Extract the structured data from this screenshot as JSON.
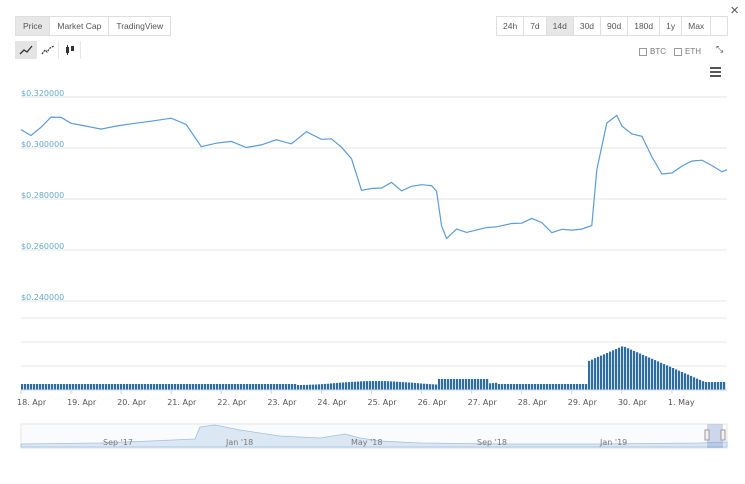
{
  "window": {
    "close_label": "×"
  },
  "tabs": [
    {
      "label": "Price",
      "active": true
    },
    {
      "label": "Market Cap",
      "active": false
    },
    {
      "label": "TradingView",
      "active": false
    }
  ],
  "periods": [
    {
      "label": "24h",
      "active": false
    },
    {
      "label": "7d",
      "active": false
    },
    {
      "label": "14d",
      "active": true
    },
    {
      "label": "30d",
      "active": false
    },
    {
      "label": "90d",
      "active": false
    },
    {
      "label": "180d",
      "active": false
    },
    {
      "label": "1y",
      "active": false
    },
    {
      "label": "Max",
      "active": false
    }
  ],
  "chart_types": [
    {
      "name": "line-chart-icon",
      "active": true
    },
    {
      "name": "ohlc-line-icon",
      "active": false
    },
    {
      "name": "candlestick-icon",
      "active": false
    }
  ],
  "toggles": [
    {
      "label": "BTC",
      "checked": false
    },
    {
      "label": "ETH",
      "checked": false
    }
  ],
  "chart_data": {
    "type": "line",
    "title": "",
    "yticks": [
      "$0.320000",
      "$0.300000",
      "$0.280000",
      "$0.260000",
      "$0.240000"
    ],
    "ylim": [
      0.24,
      0.32
    ],
    "x_labels": [
      "18. Apr",
      "19. Apr",
      "20. Apr",
      "21. Apr",
      "22. Apr",
      "23. Apr",
      "24. Apr",
      "25. Apr",
      "26. Apr",
      "27. Apr",
      "28. Apr",
      "29. Apr",
      "30. Apr",
      "1. May"
    ],
    "price_series": {
      "name": "Price",
      "color": "#5b9bd5",
      "points": [
        [
          0,
          0.3072
        ],
        [
          0.2,
          0.3049
        ],
        [
          0.4,
          0.3081
        ],
        [
          0.6,
          0.3121
        ],
        [
          0.8,
          0.312
        ],
        [
          1.0,
          0.3097
        ],
        [
          1.3,
          0.3086
        ],
        [
          1.6,
          0.3074
        ],
        [
          1.9,
          0.3086
        ],
        [
          2.2,
          0.3095
        ],
        [
          2.6,
          0.3105
        ],
        [
          3.0,
          0.3117
        ],
        [
          3.3,
          0.3092
        ],
        [
          3.6,
          0.3005
        ],
        [
          3.9,
          0.3019
        ],
        [
          4.2,
          0.3026
        ],
        [
          4.5,
          0.3002
        ],
        [
          4.8,
          0.3012
        ],
        [
          5.1,
          0.3032
        ],
        [
          5.4,
          0.3016
        ],
        [
          5.7,
          0.3064
        ],
        [
          6.0,
          0.3034
        ],
        [
          6.2,
          0.3036
        ],
        [
          6.4,
          0.3003
        ],
        [
          6.6,
          0.2958
        ],
        [
          6.8,
          0.2834
        ],
        [
          7.0,
          0.2841
        ],
        [
          7.2,
          0.2843
        ],
        [
          7.4,
          0.2865
        ],
        [
          7.6,
          0.2832
        ],
        [
          7.8,
          0.285
        ],
        [
          8.0,
          0.2856
        ],
        [
          8.2,
          0.2852
        ],
        [
          8.3,
          0.283
        ],
        [
          8.4,
          0.2694
        ],
        [
          8.5,
          0.2645
        ],
        [
          8.7,
          0.2682
        ],
        [
          8.9,
          0.2669
        ],
        [
          9.1,
          0.2679
        ],
        [
          9.3,
          0.2688
        ],
        [
          9.5,
          0.2691
        ],
        [
          9.8,
          0.2704
        ],
        [
          10.0,
          0.2705
        ],
        [
          10.2,
          0.2724
        ],
        [
          10.4,
          0.2708
        ],
        [
          10.6,
          0.2668
        ],
        [
          10.8,
          0.2681
        ],
        [
          11.0,
          0.2678
        ],
        [
          11.2,
          0.2682
        ],
        [
          11.4,
          0.2696
        ],
        [
          11.5,
          0.2914
        ],
        [
          11.7,
          0.3098
        ],
        [
          11.9,
          0.3128
        ],
        [
          12.0,
          0.3086
        ],
        [
          12.2,
          0.3055
        ],
        [
          12.4,
          0.3046
        ],
        [
          12.6,
          0.2965
        ],
        [
          12.8,
          0.2898
        ],
        [
          13.0,
          0.2902
        ],
        [
          13.2,
          0.2929
        ],
        [
          13.4,
          0.2949
        ],
        [
          13.6,
          0.2952
        ],
        [
          13.8,
          0.2931
        ],
        [
          14.0,
          0.2907
        ],
        [
          14.1,
          0.2915
        ]
      ]
    },
    "volume_series": {
      "name": "Volume",
      "color": "#2e6da4"
    },
    "navigator": {
      "labels": [
        "Sep '17",
        "Jan '18",
        "May '18",
        "Sep '18",
        "Jan '19"
      ]
    },
    "grid": true
  }
}
